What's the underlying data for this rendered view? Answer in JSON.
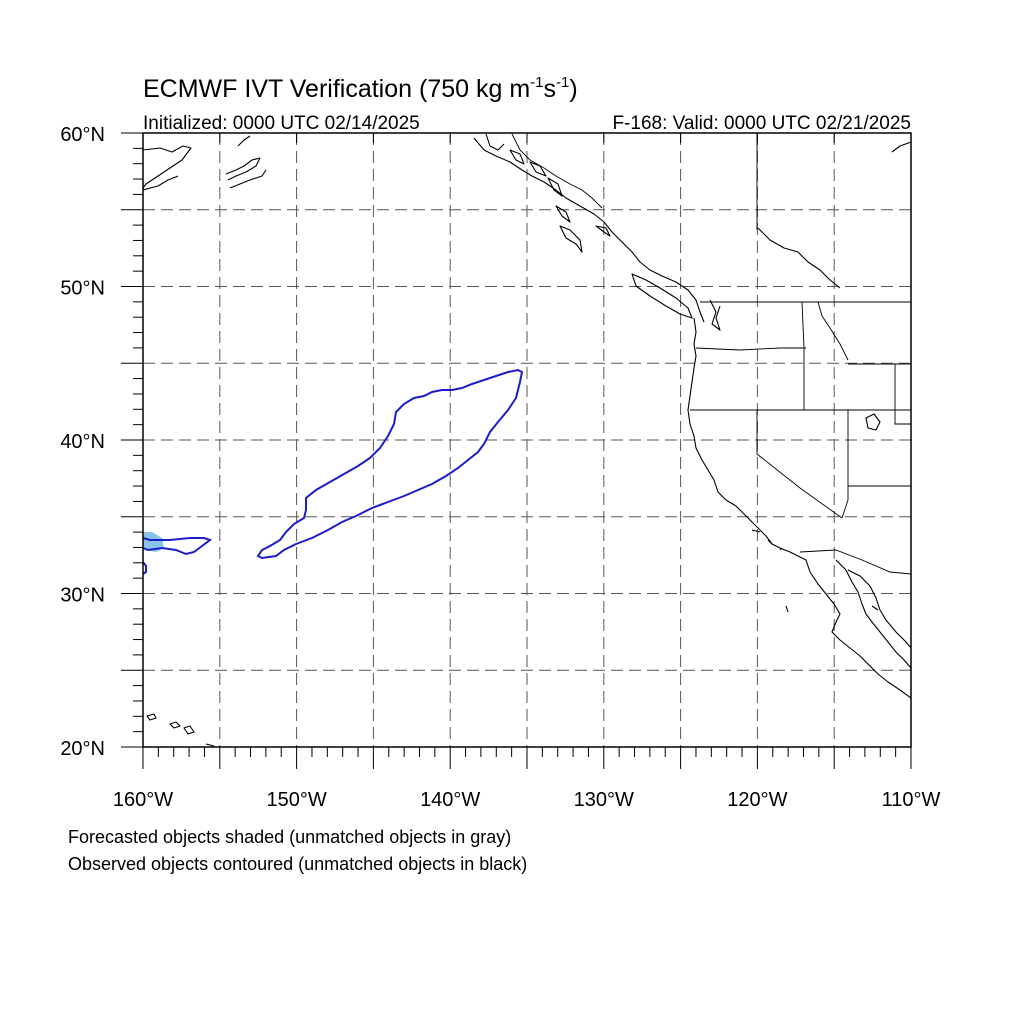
{
  "title": {
    "main": "ECMWF IVT Verification (750 kg m",
    "exp1": "-1",
    "mid": "s",
    "exp2": "-1",
    "close": ")"
  },
  "initialized": "Initialized: 0000 UTC 02/14/2025",
  "valid": "F-168: Valid: 0000 UTC 02/21/2025",
  "map": {
    "lon_range": [
      -160,
      -110
    ],
    "lat_range": [
      20,
      60
    ],
    "grid_style": "dashed",
    "x_ticks": [
      {
        "lon": -160,
        "label": "160°W"
      },
      {
        "lon": -150,
        "label": "150°W"
      },
      {
        "lon": -140,
        "label": "140°W"
      },
      {
        "lon": -130,
        "label": "130°W"
      },
      {
        "lon": -120,
        "label": "120°W"
      },
      {
        "lon": -110,
        "label": "110°W"
      }
    ],
    "y_ticks": [
      {
        "lat": 60,
        "label": "60°N"
      },
      {
        "lat": 50,
        "label": "50°N"
      },
      {
        "lat": 40,
        "label": "40°N"
      },
      {
        "lat": 30,
        "label": "30°N"
      },
      {
        "lat": 20,
        "label": "20°N"
      }
    ],
    "colors": {
      "observed_contour": "#1c1ccc",
      "forecast_shade": "#87c3ea",
      "coastline": "#000000"
    }
  },
  "captions": [
    "Forecasted objects shaded (unmatched objects in gray)",
    "Observed objects contoured (unmatched objects in black)"
  ]
}
